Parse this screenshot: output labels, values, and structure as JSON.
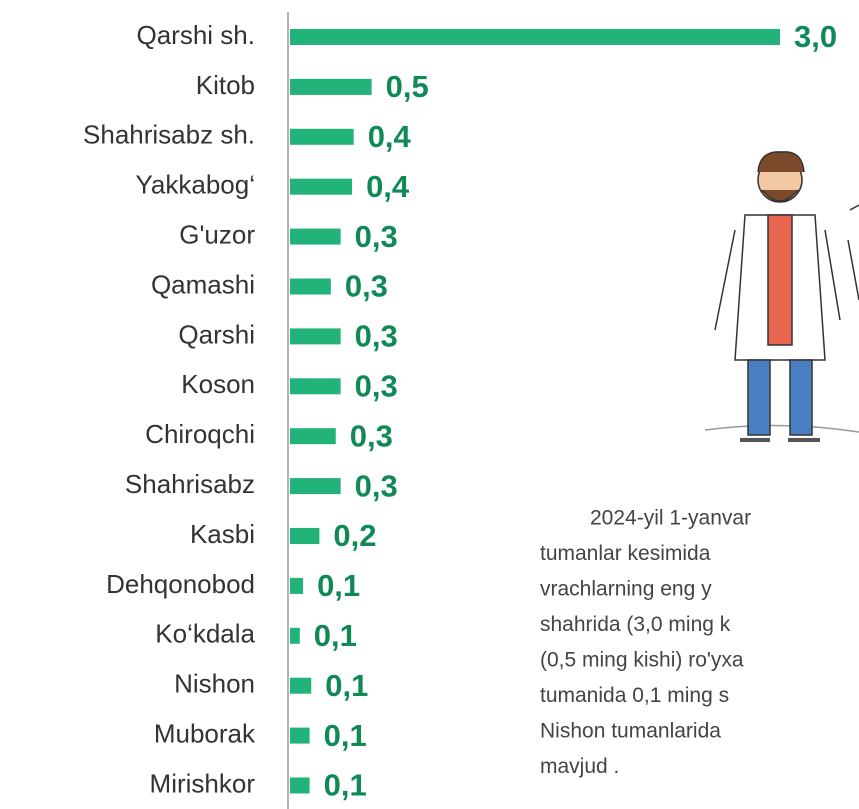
{
  "chart_data": {
    "type": "bar",
    "orientation": "horizontal",
    "categories": [
      "Qarshi sh.",
      "Kitob",
      "Shahrisabz sh.",
      "Yakkabog‘",
      "G'uzor",
      "Qamashi",
      "Qarshi",
      "Koson",
      "Chiroqchi",
      "Shahrisabz",
      "Kasbi",
      "Dehqonobod",
      "Ko‘kdala",
      "Nishon",
      "Muborak",
      "Mirishkor"
    ],
    "values": [
      3.0,
      0.5,
      0.39,
      0.38,
      0.31,
      0.25,
      0.31,
      0.31,
      0.28,
      0.31,
      0.18,
      0.08,
      0.06,
      0.13,
      0.12,
      0.12
    ],
    "value_labels": [
      "3,0",
      "0,5",
      "0,4",
      "0,4",
      "0,3",
      "0,3",
      "0,3",
      "0,3",
      "0,3",
      "0,3",
      "0,2",
      "0,1",
      "0,1",
      "0,1",
      "0,1",
      "0,1"
    ],
    "color": "#22b37a",
    "xlim": [
      0,
      3.0
    ],
    "annotation_lines": [
      "2024-yil 1-yanvar",
      "tumanlar kesimida",
      "vrachlarning eng y",
      "shahrida (3,0 ming k",
      "(0,5 ming kishi) ro'yxa",
      "tumanida 0,1 ming s",
      "Nishon tumanlarida",
      "mavjud ."
    ]
  }
}
